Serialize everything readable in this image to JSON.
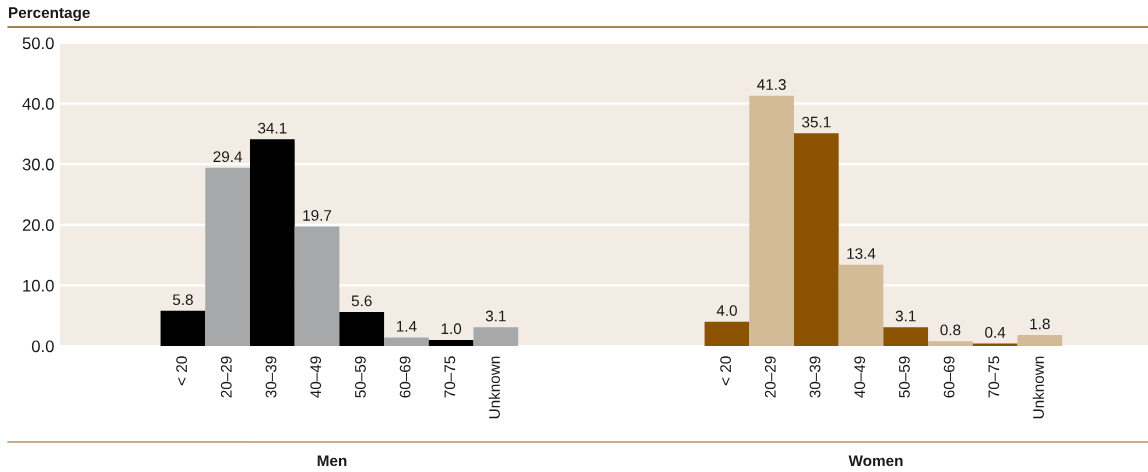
{
  "chart_data": [
    {
      "type": "bar",
      "xlabel": "Men",
      "ylabel": "Percentage",
      "categories": [
        "< 20",
        "20–29",
        "30–39",
        "40–49",
        "50–59",
        "60–69",
        "70–75",
        "Unknown"
      ],
      "values": [
        5.8,
        29.4,
        34.1,
        19.7,
        5.6,
        1.4,
        1.0,
        3.1
      ],
      "value_labels": [
        "5.8",
        "29.4",
        "34.1",
        "19.7",
        "5.6",
        "1.4",
        "1.0",
        "3.1"
      ],
      "colors": [
        "#000000",
        "#a7a8aa",
        "#000000",
        "#a7a8aa",
        "#000000",
        "#a7a8aa",
        "#000000",
        "#a7a8aa"
      ],
      "ylim": [
        0,
        50
      ],
      "yticks": [
        {
          "value": 0,
          "label": "0.0"
        },
        {
          "value": 10,
          "label": "10.0"
        },
        {
          "value": 20,
          "label": "20.0"
        },
        {
          "value": 30,
          "label": "30.0"
        },
        {
          "value": 40,
          "label": "40.0"
        },
        {
          "value": 50,
          "label": "50.0"
        }
      ],
      "grid": "y"
    },
    {
      "type": "bar",
      "xlabel": "Women",
      "categories": [
        "< 20",
        "20–29",
        "30–39",
        "40–49",
        "50–59",
        "60–69",
        "70–75",
        "Unknown"
      ],
      "values": [
        4.0,
        41.3,
        35.1,
        13.4,
        3.1,
        0.8,
        0.4,
        1.8
      ],
      "value_labels": [
        "4.0",
        "41.3",
        "35.1",
        "13.4",
        "3.1",
        "0.8",
        "0.4",
        "1.8"
      ],
      "colors": [
        "#8b5300",
        "#d3bb98",
        "#8b5300",
        "#d3bb98",
        "#8b5300",
        "#d3bb98",
        "#8b5300",
        "#d3bb98"
      ],
      "ylim": [
        0,
        50
      ],
      "yticks": [
        0,
        10,
        20,
        30,
        40,
        50
      ],
      "grid": "y",
      "tick_labels": "x"
    }
  ]
}
